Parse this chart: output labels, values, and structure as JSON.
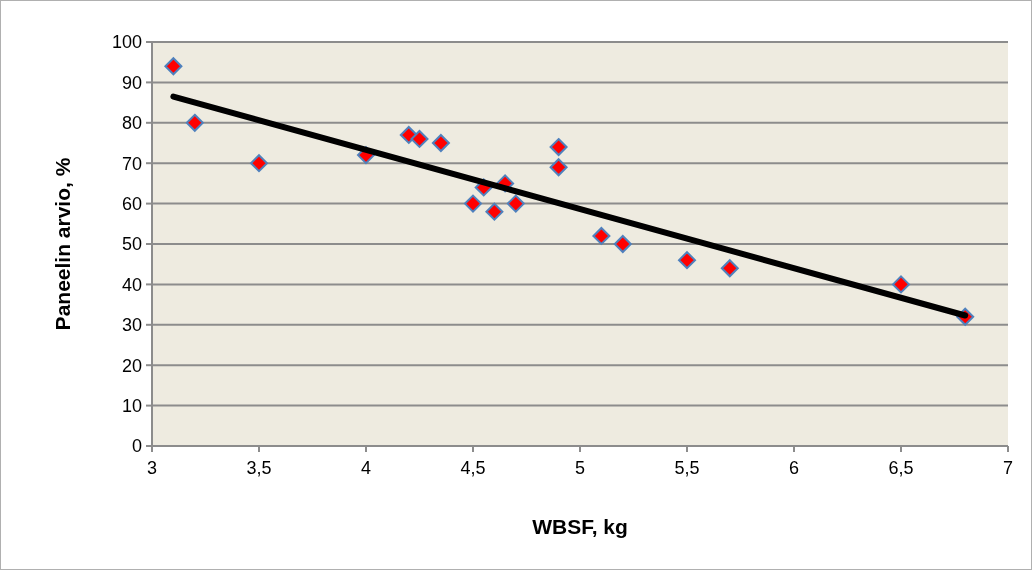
{
  "chart_data": {
    "type": "scatter",
    "xlabel": "WBSF, kg",
    "ylabel": "Paneelin arvio, %",
    "series": [
      {
        "color": "#ff0000",
        "marker": "diamond",
        "x": [
          3.1,
          3.2,
          3.5,
          4.0,
          4.2,
          4.25,
          4.35,
          4.5,
          4.55,
          4.6,
          4.65,
          4.7,
          4.9,
          4.9,
          5.1,
          5.2,
          5.5,
          5.7,
          6.5,
          6.8
        ],
        "values": [
          94,
          80,
          70,
          72,
          77,
          76,
          75,
          60,
          64,
          58,
          65,
          60,
          74,
          69,
          52,
          50,
          46,
          44,
          40,
          32
        ]
      },
      {
        "type": "line",
        "color": "#000000",
        "marker": "none",
        "x": [
          3.1,
          6.8
        ],
        "values": [
          86.5,
          32.3
        ]
      }
    ],
    "xlim": [
      3,
      7
    ],
    "xticks": [
      {
        "value": 3,
        "label": "3"
      },
      {
        "value": 3.5,
        "label": "3,5"
      },
      {
        "value": 4,
        "label": "4"
      },
      {
        "value": 4.5,
        "label": "4,5"
      },
      {
        "value": 5,
        "label": "5"
      },
      {
        "value": 5.5,
        "label": "5,5"
      },
      {
        "value": 6,
        "label": "6"
      },
      {
        "value": 6.5,
        "label": "6,5"
      },
      {
        "value": 7,
        "label": "7"
      }
    ],
    "ylim": [
      0,
      100
    ],
    "yticks": [
      0,
      10,
      20,
      30,
      40,
      50,
      60,
      70,
      80,
      90,
      100
    ],
    "grid": "y"
  }
}
